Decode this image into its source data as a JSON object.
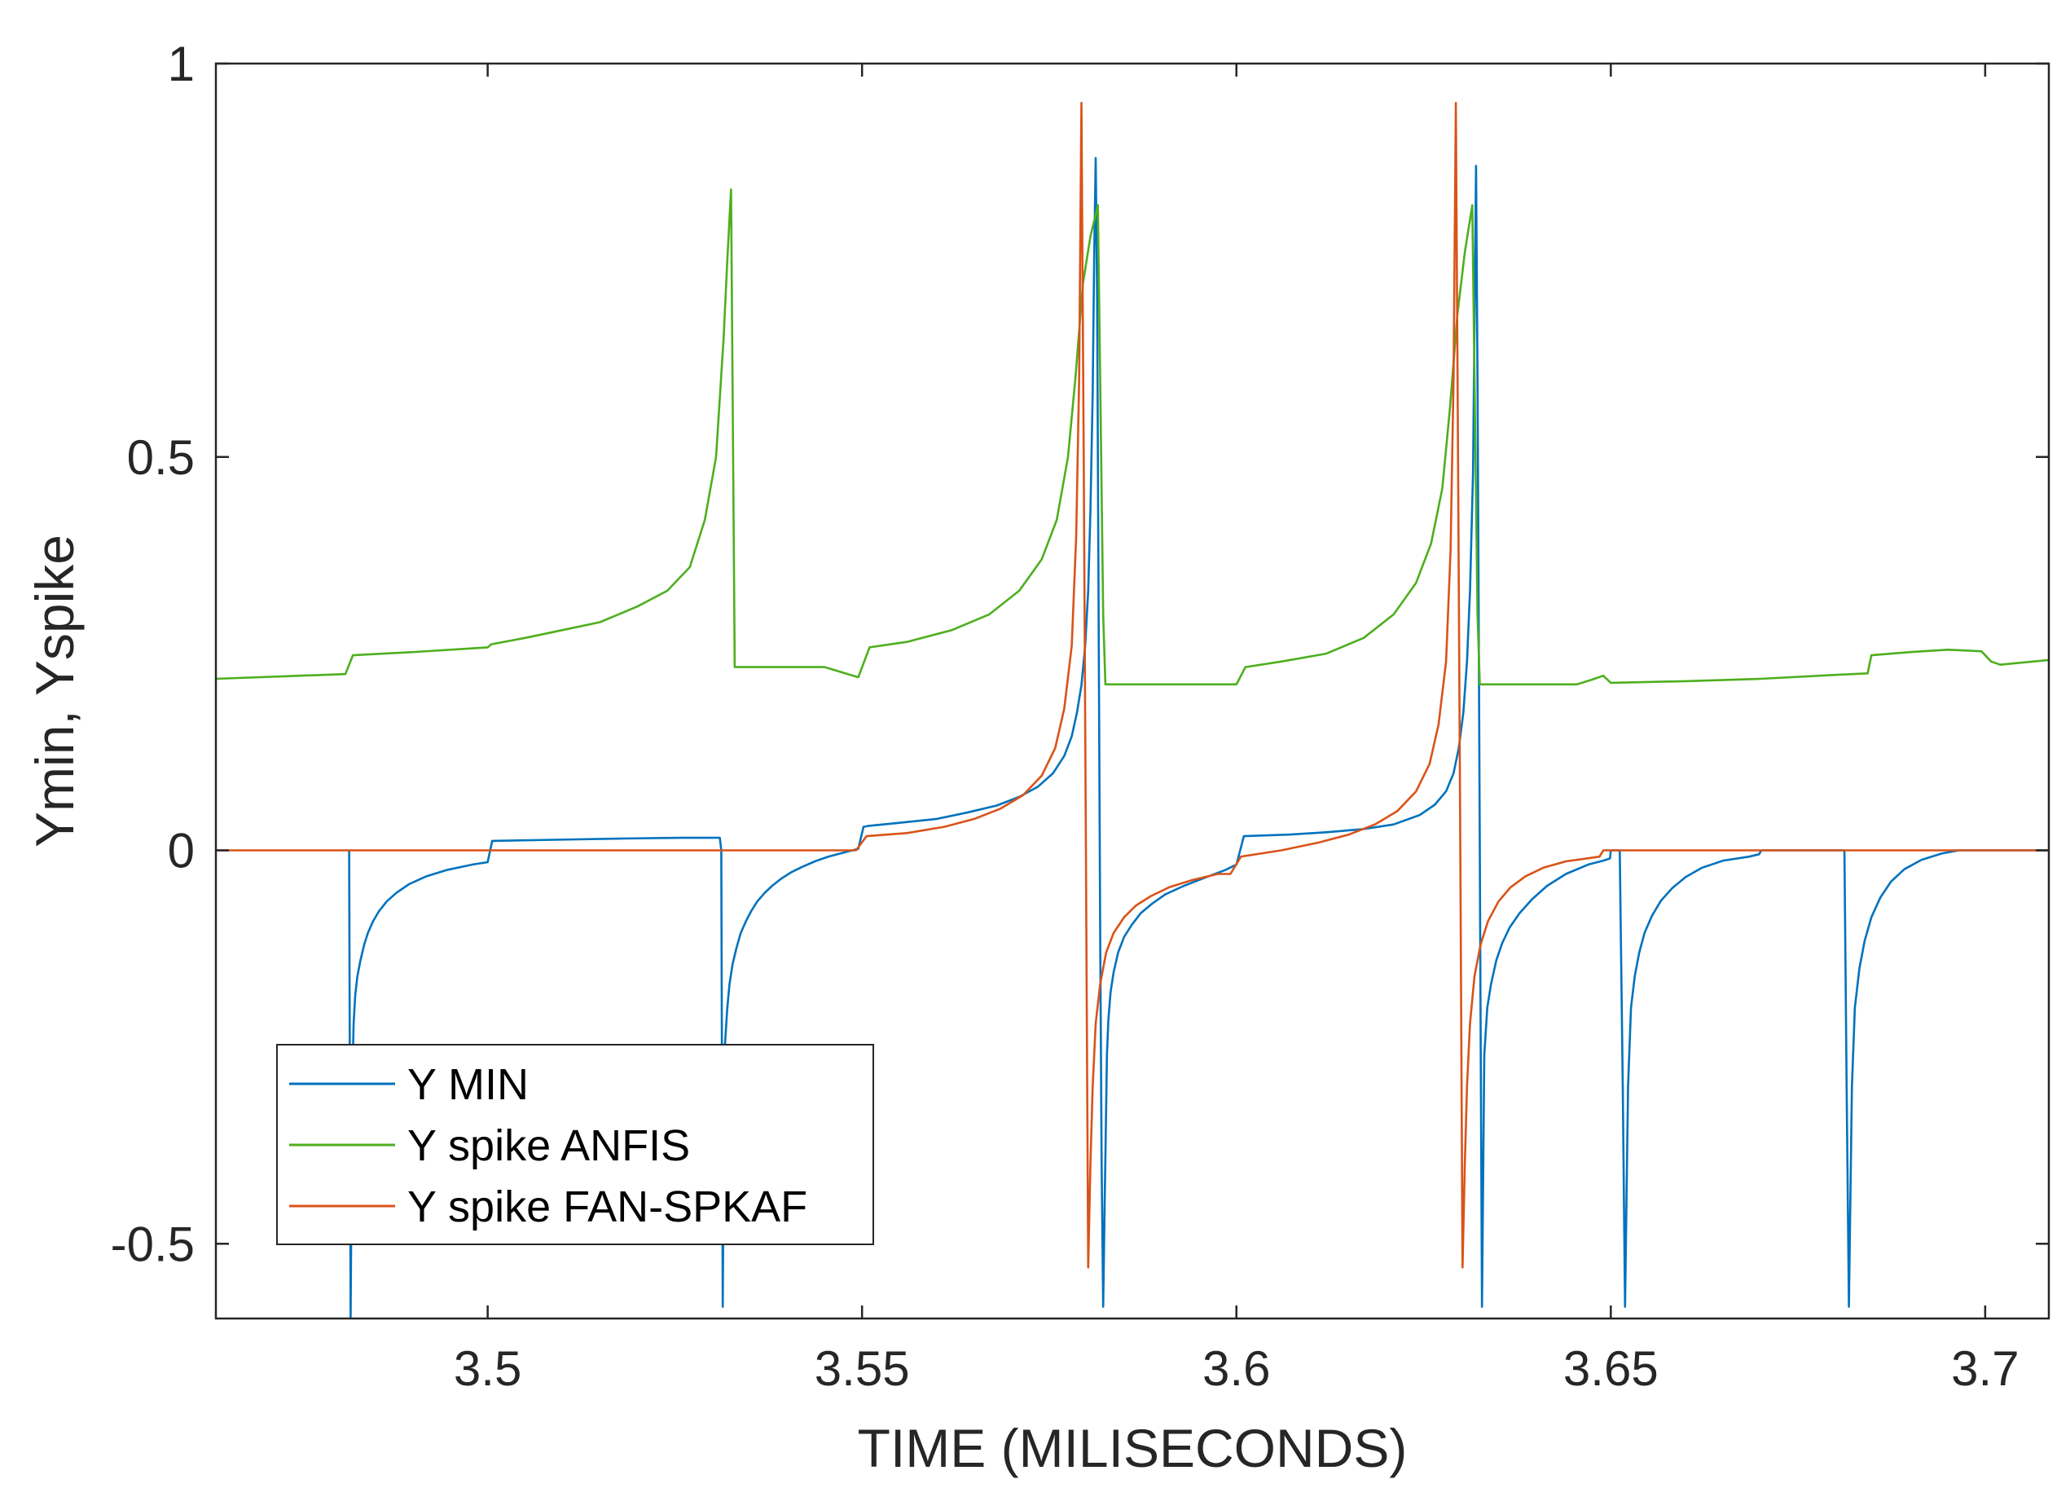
{
  "chart_data": {
    "type": "line",
    "title": "",
    "xlabel": "TIME (MILISECONDS)",
    "ylabel": "Ymin, Yspike",
    "xlim": [
      3.4637,
      3.7085
    ],
    "ylim": [
      -0.595,
      1.0
    ],
    "xticks": [
      3.5,
      3.55,
      3.6,
      3.65,
      3.7
    ],
    "xtick_labels": [
      "3.5",
      "3.55",
      "3.6",
      "3.65",
      "3.7"
    ],
    "yticks": [
      -0.5,
      0,
      0.5,
      1
    ],
    "ytick_labels": [
      "-0.5",
      "0",
      "0.5",
      "1"
    ],
    "grid": false,
    "legend_position": "bottom-left",
    "series": [
      {
        "name": "Y MIN",
        "color": "#0072BD",
        "x": [
          3.4815,
          3.4816,
          3.4817,
          3.4819,
          3.4821,
          3.4823,
          3.4826,
          3.483,
          3.4835,
          3.484,
          3.4847,
          3.4855,
          3.4865,
          3.4878,
          3.4895,
          3.4918,
          3.4945,
          3.498,
          3.5,
          3.5006,
          3.506,
          3.512,
          3.518,
          3.526,
          3.531,
          3.5312,
          3.5313,
          3.5314,
          3.5316,
          3.532,
          3.5323,
          3.5327,
          3.5332,
          3.5338,
          3.5345,
          3.5352,
          3.536,
          3.537,
          3.538,
          3.5392,
          3.5405,
          3.542,
          3.5437,
          3.5455,
          3.5475,
          3.5495,
          3.5502,
          3.5508,
          3.555,
          3.56,
          3.564,
          3.568,
          3.571,
          3.5735,
          3.5755,
          3.577,
          3.578,
          3.5787,
          3.5793,
          3.5798,
          3.5802,
          3.5805,
          3.5808,
          3.581,
          3.5812,
          3.5814,
          3.5816,
          3.5818,
          3.582,
          3.5822,
          3.5824,
          3.5826,
          3.5827,
          3.5829,
          3.5832,
          3.5836,
          3.5842,
          3.585,
          3.586,
          3.5872,
          3.5887,
          3.5905,
          3.593,
          3.596,
          3.5985,
          3.6,
          3.601,
          3.607,
          3.612,
          3.617,
          3.621,
          3.6245,
          3.6265,
          3.628,
          3.629,
          3.6297,
          3.6303,
          3.6308,
          3.6312,
          3.6316,
          3.632,
          3.6322,
          3.6324,
          3.6326,
          3.6328,
          3.6331,
          3.6335,
          3.634,
          3.6347,
          3.6355,
          3.6365,
          3.6378,
          3.6395,
          3.6415,
          3.644,
          3.647,
          3.649,
          3.6497,
          3.6499,
          3.65,
          3.6512,
          3.6516,
          3.6519,
          3.6523,
          3.6527,
          3.6532,
          3.6538,
          3.6545,
          3.6555,
          3.6567,
          3.6582,
          3.66,
          3.6622,
          3.665,
          3.6685,
          3.6698,
          3.6701,
          3.6812,
          3.6815,
          3.6818,
          3.6822,
          3.6826,
          3.6832,
          3.6839,
          3.6848,
          3.686,
          3.6874,
          3.6892,
          3.6915,
          3.6942,
          3.6965,
          3.7085
        ],
        "y": [
          0.0,
          -0.3,
          -0.595,
          -0.3,
          -0.22,
          -0.185,
          -0.16,
          -0.14,
          -0.12,
          -0.105,
          -0.09,
          -0.077,
          -0.065,
          -0.054,
          -0.043,
          -0.033,
          -0.025,
          -0.018,
          -0.015,
          0.012,
          0.013,
          0.014,
          0.015,
          0.016,
          0.016,
          0.0,
          -0.3,
          -0.58,
          -0.26,
          -0.2,
          -0.17,
          -0.145,
          -0.125,
          -0.105,
          -0.09,
          -0.077,
          -0.065,
          -0.054,
          -0.045,
          -0.036,
          -0.028,
          -0.021,
          -0.014,
          -0.008,
          -0.003,
          0.002,
          0.03,
          0.031,
          0.035,
          0.04,
          0.048,
          0.057,
          0.068,
          0.081,
          0.098,
          0.12,
          0.145,
          0.175,
          0.21,
          0.26,
          0.33,
          0.43,
          0.58,
          0.75,
          0.88,
          0.7,
          0.3,
          -0.1,
          -0.4,
          -0.58,
          -0.45,
          -0.33,
          -0.26,
          -0.215,
          -0.18,
          -0.155,
          -0.13,
          -0.11,
          -0.095,
          -0.08,
          -0.068,
          -0.056,
          -0.045,
          -0.034,
          -0.025,
          -0.018,
          0.018,
          0.02,
          0.023,
          0.027,
          0.033,
          0.045,
          0.058,
          0.075,
          0.098,
          0.13,
          0.175,
          0.24,
          0.33,
          0.48,
          0.87,
          0.6,
          0.2,
          -0.2,
          -0.58,
          -0.26,
          -0.2,
          -0.17,
          -0.14,
          -0.118,
          -0.098,
          -0.08,
          -0.062,
          -0.045,
          -0.03,
          -0.018,
          -0.013,
          -0.011,
          -0.01,
          0.0,
          0.0,
          -0.3,
          -0.58,
          -0.3,
          -0.2,
          -0.16,
          -0.13,
          -0.105,
          -0.083,
          -0.064,
          -0.048,
          -0.034,
          -0.022,
          -0.013,
          -0.008,
          -0.005,
          0.0,
          0.0,
          -0.3,
          -0.58,
          -0.3,
          -0.2,
          -0.15,
          -0.115,
          -0.085,
          -0.06,
          -0.04,
          -0.024,
          -0.012,
          -0.004,
          0.0,
          0.0
        ]
      },
      {
        "name": "Y spike ANFIS",
        "color": "#4DAF1E",
        "x": [
          3.4637,
          3.481,
          3.482,
          3.49,
          3.5,
          3.5005,
          3.505,
          3.51,
          3.515,
          3.52,
          3.524,
          3.527,
          3.529,
          3.5305,
          3.5315,
          3.532,
          3.5325,
          3.533,
          3.545,
          3.5495,
          3.551,
          3.556,
          3.562,
          3.567,
          3.571,
          3.574,
          3.576,
          3.5775,
          3.5785,
          3.5795,
          3.5805,
          3.5815,
          3.5818,
          3.5822,
          3.5825,
          3.6,
          3.6012,
          3.606,
          3.612,
          3.617,
          3.621,
          3.624,
          3.626,
          3.6275,
          3.6285,
          3.6295,
          3.6305,
          3.6315,
          3.6318,
          3.6322,
          3.6325,
          3.6455,
          3.6475,
          3.649,
          3.65,
          3.66,
          3.67,
          3.68,
          3.6843,
          3.6848,
          3.69,
          3.695,
          3.6995,
          3.7008,
          3.702,
          3.7085
        ],
        "y": [
          0.218,
          0.224,
          0.248,
          0.252,
          0.258,
          0.262,
          0.27,
          0.28,
          0.29,
          0.31,
          0.33,
          0.36,
          0.42,
          0.5,
          0.65,
          0.75,
          0.84,
          0.233,
          0.233,
          0.22,
          0.258,
          0.265,
          0.28,
          0.3,
          0.33,
          0.37,
          0.42,
          0.5,
          0.6,
          0.72,
          0.78,
          0.82,
          0.6,
          0.3,
          0.211,
          0.211,
          0.233,
          0.24,
          0.25,
          0.27,
          0.3,
          0.34,
          0.39,
          0.46,
          0.56,
          0.68,
          0.76,
          0.82,
          0.6,
          0.3,
          0.211,
          0.211,
          0.217,
          0.222,
          0.213,
          0.215,
          0.218,
          0.223,
          0.225,
          0.248,
          0.252,
          0.255,
          0.253,
          0.24,
          0.236,
          0.242
        ]
      },
      {
        "name": "Y spike FAN-SPKAF",
        "color": "#D95319",
        "x": [
          3.4637,
          3.5492,
          3.5506,
          3.556,
          3.561,
          3.565,
          3.5685,
          3.5715,
          3.574,
          3.5758,
          3.577,
          3.578,
          3.5786,
          3.579,
          3.5793,
          3.5796,
          3.5799,
          3.5802,
          3.5805,
          3.5808,
          3.5812,
          3.5818,
          3.5826,
          3.5836,
          3.585,
          3.5866,
          3.5886,
          3.591,
          3.594,
          3.5975,
          3.5992,
          3.6006,
          3.606,
          3.611,
          3.615,
          3.6185,
          3.6215,
          3.624,
          3.6258,
          3.627,
          3.628,
          3.6286,
          3.629,
          3.6293,
          3.6296,
          3.6299,
          3.6302,
          3.6305,
          3.6308,
          3.6312,
          3.6318,
          3.6326,
          3.6336,
          3.635,
          3.6366,
          3.6386,
          3.641,
          3.644,
          3.647,
          3.6485,
          3.649,
          3.7085
        ],
        "y": [
          0.0,
          0.0,
          0.018,
          0.022,
          0.03,
          0.04,
          0.053,
          0.07,
          0.095,
          0.13,
          0.18,
          0.26,
          0.4,
          0.6,
          0.95,
          0.5,
          0.0,
          -0.53,
          -0.4,
          -0.3,
          -0.22,
          -0.17,
          -0.13,
          -0.105,
          -0.085,
          -0.07,
          -0.058,
          -0.047,
          -0.038,
          -0.03,
          -0.03,
          -0.008,
          0.0,
          0.01,
          0.02,
          0.033,
          0.05,
          0.075,
          0.11,
          0.16,
          0.24,
          0.38,
          0.6,
          0.95,
          0.5,
          0.0,
          -0.53,
          -0.4,
          -0.3,
          -0.22,
          -0.16,
          -0.12,
          -0.09,
          -0.065,
          -0.047,
          -0.033,
          -0.022,
          -0.014,
          -0.01,
          -0.008,
          0.0,
          0.0
        ]
      }
    ]
  }
}
